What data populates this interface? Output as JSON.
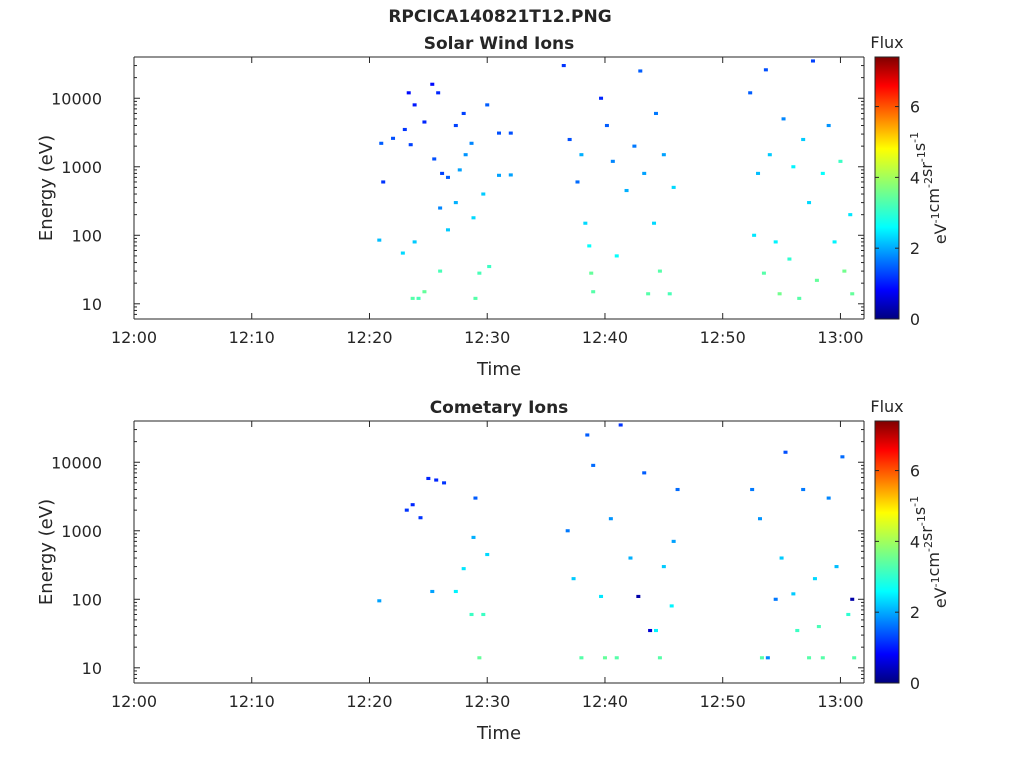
{
  "figure_title": "RPCICA140821T12.PNG",
  "colorbar": {
    "title": "Flux",
    "unit_label_parts": [
      "eV",
      "-1",
      "cm",
      "-2",
      "sr",
      "-1",
      "s",
      "-1"
    ],
    "ticks": [
      "0",
      "2",
      "4",
      "6"
    ],
    "range": [
      0,
      7.4
    ],
    "colormap": "jet"
  },
  "chart_data": [
    {
      "type": "heatmap",
      "title": "Solar Wind Ions",
      "xlabel": "Time",
      "ylabel": "Energy (eV)",
      "yscale": "log",
      "xlim": [
        "12:00",
        "13:02"
      ],
      "ylim": [
        6,
        40000
      ],
      "x_tick_labels": [
        "12:00",
        "12:10",
        "12:20",
        "12:30",
        "12:40",
        "12:50",
        "13:00"
      ],
      "y_tick_labels": [
        "10",
        "100",
        "1000",
        "10000"
      ],
      "cells": [
        [
          "12:20:50",
          85,
          2.3
        ],
        [
          "12:21:10",
          600,
          1.3
        ],
        [
          "12:21:00",
          2200,
          1.6
        ],
        [
          "12:22:00",
          2600,
          1.5
        ],
        [
          "12:22:50",
          55,
          2.5
        ],
        [
          "12:23:00",
          3500,
          1.3
        ],
        [
          "12:23:30",
          2100,
          1.4
        ],
        [
          "12:23:50",
          80,
          2.4
        ],
        [
          "12:23:20",
          12000,
          1.0
        ],
        [
          "12:23:50",
          8000,
          1.1
        ],
        [
          "12:23:40",
          12,
          3.4
        ],
        [
          "12:24:10",
          12,
          3.3
        ],
        [
          "12:24:40",
          15,
          3.5
        ],
        [
          "12:24:40",
          4500,
          1.2
        ],
        [
          "12:25:20",
          16000,
          1.0
        ],
        [
          "12:25:50",
          12000,
          1.2
        ],
        [
          "12:25:30",
          1300,
          1.5
        ],
        [
          "12:26:10",
          800,
          1.4
        ],
        [
          "12:26:00",
          250,
          1.9
        ],
        [
          "12:26:40",
          700,
          1.6
        ],
        [
          "12:26:00",
          30,
          3.3
        ],
        [
          "12:26:40",
          120,
          2.4
        ],
        [
          "12:27:20",
          300,
          2.2
        ],
        [
          "12:27:20",
          4000,
          1.4
        ],
        [
          "12:28:00",
          6000,
          1.4
        ],
        [
          "12:27:40",
          900,
          2.1
        ],
        [
          "12:28:10",
          1500,
          2.0
        ],
        [
          "12:28:40",
          2200,
          1.9
        ],
        [
          "12:28:50",
          180,
          2.5
        ],
        [
          "12:29:00",
          12,
          3.4
        ],
        [
          "12:29:20",
          28,
          3.3
        ],
        [
          "12:29:40",
          400,
          2.4
        ],
        [
          "12:30:00",
          8000,
          1.6
        ],
        [
          "12:30:10",
          35,
          3.2
        ],
        [
          "12:31:00",
          3100,
          1.5
        ],
        [
          "12:32:00",
          3100,
          1.5
        ],
        [
          "12:31:00",
          750,
          2.1
        ],
        [
          "12:32:00",
          760,
          2.1
        ],
        [
          "12:36:30",
          30000,
          1.3
        ],
        [
          "12:37:00",
          2500,
          1.5
        ],
        [
          "12:37:40",
          600,
          1.7
        ],
        [
          "12:38:00",
          1500,
          2.2
        ],
        [
          "12:38:20",
          150,
          2.5
        ],
        [
          "12:38:40",
          70,
          2.8
        ],
        [
          "12:38:50",
          28,
          3.5
        ],
        [
          "12:39:00",
          15,
          3.4
        ],
        [
          "12:39:40",
          10000,
          1.2
        ],
        [
          "12:40:10",
          4000,
          1.6
        ],
        [
          "12:40:40",
          1200,
          1.9
        ],
        [
          "12:41:00",
          50,
          2.8
        ],
        [
          "12:41:50",
          450,
          2.2
        ],
        [
          "12:42:30",
          2000,
          1.8
        ],
        [
          "12:43:00",
          25000,
          1.6
        ],
        [
          "12:43:20",
          800,
          2.1
        ],
        [
          "12:43:40",
          14,
          3.4
        ],
        [
          "12:44:10",
          150,
          2.5
        ],
        [
          "12:44:20",
          6000,
          1.8
        ],
        [
          "12:44:40",
          30,
          3.4
        ],
        [
          "12:45:00",
          1500,
          2.1
        ],
        [
          "12:45:30",
          14,
          3.3
        ],
        [
          "12:45:50",
          500,
          2.5
        ],
        [
          "12:52:20",
          12000,
          1.6
        ],
        [
          "12:52:40",
          100,
          2.6
        ],
        [
          "12:53:00",
          800,
          2.3
        ],
        [
          "12:53:30",
          28,
          3.4
        ],
        [
          "12:53:40",
          26000,
          1.5
        ],
        [
          "12:54:00",
          1500,
          2.4
        ],
        [
          "12:54:30",
          80,
          2.7
        ],
        [
          "12:54:50",
          14,
          3.6
        ],
        [
          "12:55:10",
          5000,
          1.9
        ],
        [
          "12:55:40",
          45,
          3.1
        ],
        [
          "12:56:00",
          1000,
          2.7
        ],
        [
          "12:56:30",
          12,
          3.4
        ],
        [
          "12:56:50",
          2500,
          2.4
        ],
        [
          "12:57:20",
          300,
          2.5
        ],
        [
          "12:57:40",
          35000,
          1.4
        ],
        [
          "12:58:00",
          22,
          3.5
        ],
        [
          "12:58:30",
          800,
          2.8
        ],
        [
          "12:59:00",
          4000,
          2.0
        ],
        [
          "12:59:30",
          80,
          2.7
        ],
        [
          "13:00:00",
          1200,
          3.2
        ],
        [
          "13:00:20",
          30,
          3.6
        ],
        [
          "13:00:50",
          200,
          2.6
        ],
        [
          "13:01:00",
          14,
          3.5
        ]
      ]
    },
    {
      "type": "heatmap",
      "title": "Cometary Ions",
      "xlabel": "Time",
      "ylabel": "Energy (eV)",
      "yscale": "log",
      "xlim": [
        "12:00",
        "13:02"
      ],
      "ylim": [
        6,
        40000
      ],
      "x_tick_labels": [
        "12:00",
        "12:10",
        "12:20",
        "12:30",
        "12:40",
        "12:50",
        "13:00"
      ],
      "y_tick_labels": [
        "10",
        "100",
        "1000",
        "10000"
      ],
      "cells": [
        [
          "12:20:50",
          95,
          2.1
        ],
        [
          "12:23:10",
          2000,
          1.3
        ],
        [
          "12:23:40",
          2400,
          1.2
        ],
        [
          "12:24:20",
          1550,
          1.3
        ],
        [
          "12:25:00",
          5800,
          1.2
        ],
        [
          "12:25:40",
          5500,
          1.2
        ],
        [
          "12:25:20",
          130,
          2.1
        ],
        [
          "12:26:20",
          5000,
          1.3
        ],
        [
          "12:27:20",
          130,
          2.7
        ],
        [
          "12:28:00",
          280,
          2.6
        ],
        [
          "12:28:40",
          60,
          3.2
        ],
        [
          "12:28:50",
          800,
          2.2
        ],
        [
          "12:29:00",
          3000,
          1.6
        ],
        [
          "12:29:20",
          14,
          3.5
        ],
        [
          "12:29:40",
          60,
          3.2
        ],
        [
          "12:30:00",
          450,
          2.5
        ],
        [
          "12:36:50",
          1000,
          1.8
        ],
        [
          "12:37:20",
          200,
          2.4
        ],
        [
          "12:38:00",
          14,
          3.4
        ],
        [
          "12:38:30",
          25000,
          1.6
        ],
        [
          "12:39:00",
          9000,
          1.7
        ],
        [
          "12:39:40",
          110,
          2.6
        ],
        [
          "12:40:00",
          14,
          3.5
        ],
        [
          "12:40:30",
          1500,
          2.0
        ],
        [
          "12:41:00",
          14,
          3.4
        ],
        [
          "12:41:20",
          35000,
          1.3
        ],
        [
          "12:42:10",
          400,
          2.2
        ],
        [
          "12:42:50",
          110,
          0.3
        ],
        [
          "12:43:20",
          7000,
          1.6
        ],
        [
          "12:43:50",
          35,
          0.6
        ],
        [
          "12:44:20",
          35,
          2.7
        ],
        [
          "12:44:40",
          14,
          3.4
        ],
        [
          "12:45:00",
          300,
          2.4
        ],
        [
          "12:45:40",
          80,
          2.7
        ],
        [
          "12:45:50",
          700,
          2.1
        ],
        [
          "12:46:10",
          4000,
          1.7
        ],
        [
          "12:52:30",
          4000,
          1.8
        ],
        [
          "12:53:10",
          1500,
          2.0
        ],
        [
          "12:53:20",
          14,
          3.4
        ],
        [
          "12:53:50",
          14,
          1.9
        ],
        [
          "12:54:30",
          100,
          1.8
        ],
        [
          "12:55:00",
          400,
          2.4
        ],
        [
          "12:55:20",
          14000,
          1.5
        ],
        [
          "12:56:00",
          120,
          2.4
        ],
        [
          "12:56:20",
          35,
          3.2
        ],
        [
          "12:56:50",
          4000,
          1.8
        ],
        [
          "12:57:20",
          14,
          3.4
        ],
        [
          "12:57:50",
          200,
          2.5
        ],
        [
          "12:58:10",
          40,
          3.3
        ],
        [
          "12:58:30",
          14,
          3.4
        ],
        [
          "12:59:00",
          3000,
          1.9
        ],
        [
          "12:59:40",
          300,
          2.3
        ],
        [
          "13:00:10",
          12000,
          1.7
        ],
        [
          "13:00:40",
          60,
          3.1
        ],
        [
          "13:01:00",
          100,
          0.3
        ],
        [
          "13:01:10",
          14,
          3.4
        ]
      ]
    }
  ]
}
